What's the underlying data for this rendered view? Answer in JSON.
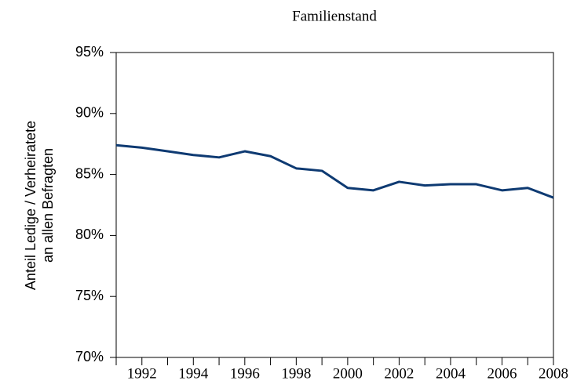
{
  "chart_data": {
    "type": "line",
    "title": "Familienstand",
    "ylabel": [
      "Anteil Ledige / Verheiratete",
      "an allen Befragten"
    ],
    "x": [
      1991,
      1992,
      1993,
      1994,
      1995,
      1996,
      1997,
      1998,
      1999,
      2000,
      2001,
      2002,
      2003,
      2004,
      2005,
      2006,
      2007,
      2008
    ],
    "series": [
      {
        "name": "Anteil",
        "color": "#0e3a72",
        "values": [
          87.4,
          87.2,
          86.9,
          86.6,
          86.4,
          86.9,
          86.5,
          85.5,
          85.3,
          83.9,
          83.7,
          84.4,
          84.1,
          84.2,
          84.2,
          83.7,
          83.9,
          83.1
        ]
      }
    ],
    "xlim": [
      1991,
      2008
    ],
    "xticks": [
      1992,
      1994,
      1996,
      1998,
      2000,
      2002,
      2004,
      2006,
      2008
    ],
    "xminorticks": [
      1991,
      1993,
      1995,
      1997,
      1999,
      2001,
      2003,
      2005,
      2007
    ],
    "ylim": [
      70,
      95
    ],
    "yticks": [
      {
        "value": 70,
        "label": "70%"
      },
      {
        "value": 75,
        "label": "75%"
      },
      {
        "value": 80,
        "label": "80%"
      },
      {
        "value": 85,
        "label": "85%"
      },
      {
        "value": 90,
        "label": "90%"
      },
      {
        "value": 95,
        "label": "95%"
      }
    ]
  }
}
